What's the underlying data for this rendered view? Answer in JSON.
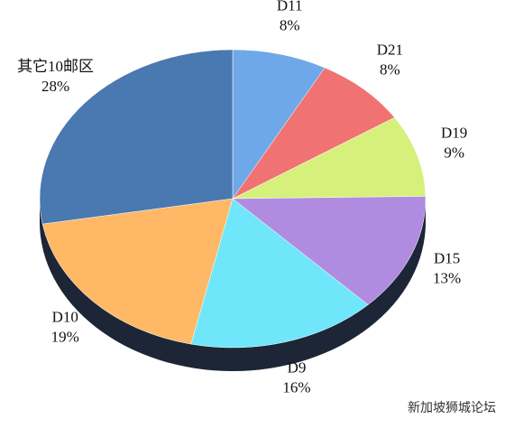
{
  "chart_data": {
    "type": "pie",
    "categories": [
      "D11",
      "D21",
      "D19",
      "D15",
      "D9",
      "D10",
      "其它10邮区"
    ],
    "values": [
      8,
      8,
      9,
      13,
      16,
      19,
      28
    ],
    "value_labels": [
      "8%",
      "8%",
      "9%",
      "13%",
      "16%",
      "19%",
      "28%"
    ],
    "colors": [
      "#6fa8e8",
      "#f07272",
      "#d6f07c",
      "#b08ce0",
      "#70e6fa",
      "#ffb866",
      "#4a78b0"
    ]
  },
  "watermark": "新加坡狮城论坛"
}
